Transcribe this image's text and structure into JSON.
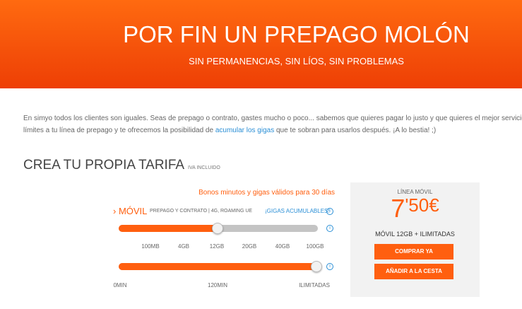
{
  "header": {
    "title": "POR FIN UN PREPAGO MOLÓN",
    "subtitle": "SIN PERMANENCIAS, SIN LÍOS, SIN PROBLEMAS"
  },
  "intro": {
    "line1": "En simyo todos los clientes son iguales. Seas de prepago o contrato, gastes mucho o poco... sabemos que quieres pagar lo justo y que quieres el mejor servicio. Por eso",
    "line2_before": "límites a tu línea de prepago y te ofrecemos la posibilidad de ",
    "line2_link": "acumular los gigas",
    "line2_after": " que te sobran para usarlos después. ¡A lo bestia! ;)"
  },
  "section": {
    "title": "CREA TU PROPIA TARIFA",
    "note": "IVA INCLUIDO"
  },
  "config": {
    "validity": "Bonos minutos y gigas válidos para 30 días",
    "product": "› MÓVIL",
    "product_detail": "PREPAGO Y CONTRATO | 4G, ROAMING UE",
    "badge": "¡GIGAS ACUMULABLES!",
    "data_options": [
      "100MB",
      "4GB",
      "12GB",
      "20GB",
      "40GB",
      "100GB"
    ],
    "minute_options": [
      "0MIN",
      "120MIN",
      "ILIMITADAS"
    ]
  },
  "summary": {
    "label": "LÍNEA MÓVIL",
    "price_main": "7",
    "price_cents": "'50€",
    "plan": "MÓVIL 12GB + ILIMITADAS",
    "buy": "COMPRAR YA",
    "cart": "AÑADIR A LA CESTA"
  }
}
